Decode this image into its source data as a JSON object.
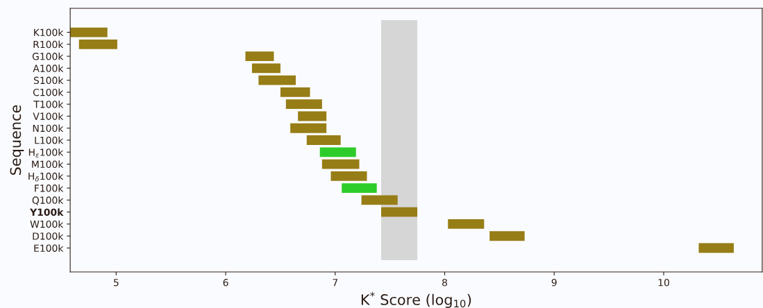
{
  "chart_data": {
    "type": "bar",
    "orientation": "horizontal",
    "categories": [
      "K100k",
      "R100k",
      "G100k",
      "A100k",
      "S100k",
      "C100k",
      "T100k",
      "V100k",
      "N100k",
      "L100k",
      "H$_{ε}$100k",
      "M100k",
      "H$_{δ}$100k",
      "F100k",
      "Q100k",
      "Y100k",
      "W100k",
      "D100k",
      "E100k"
    ],
    "base": [
      4.58,
      4.66,
      6.18,
      6.24,
      6.3,
      6.5,
      6.55,
      6.66,
      6.59,
      6.74,
      6.86,
      6.88,
      6.96,
      7.06,
      7.24,
      7.42,
      8.03,
      8.41,
      10.32
    ],
    "values": [
      0.34,
      0.35,
      0.26,
      0.26,
      0.34,
      0.27,
      0.33,
      0.26,
      0.33,
      0.31,
      0.33,
      0.34,
      0.33,
      0.32,
      0.33,
      0.33,
      0.33,
      0.32,
      0.32
    ],
    "colors": [
      "#967d16",
      "#967d16",
      "#967d16",
      "#967d16",
      "#967d16",
      "#967d16",
      "#967d16",
      "#967d16",
      "#967d16",
      "#967d16",
      "#2ecc2a",
      "#967d16",
      "#967d16",
      "#2ecc2a",
      "#967d16",
      "#967d16",
      "#967d16",
      "#967d16",
      "#967d16"
    ],
    "xlim": [
      4.58,
      10.9
    ],
    "xticks": [
      5,
      6,
      7,
      8,
      9,
      10
    ],
    "xlabel": "K$^{*}$ Score (log$_{10}$)",
    "ylabel": "Sequence",
    "bands": [
      {
        "axis": "x",
        "from": 7.42,
        "to": 7.75,
        "color": "#d6d6d6"
      }
    ],
    "grid": false,
    "legend": false
  }
}
